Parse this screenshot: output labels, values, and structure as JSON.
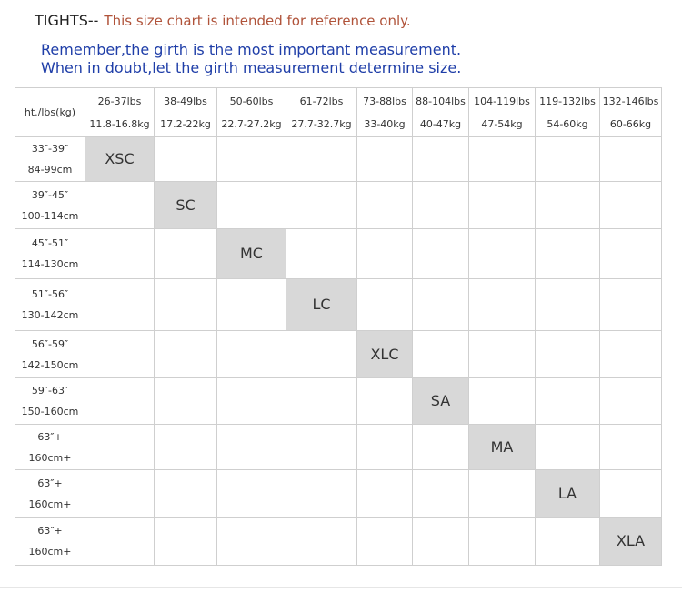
{
  "header": {
    "label": "TIGHTS--",
    "note": "This size chart is intended for reference only.",
    "line1": "Remember,the girth is the most important measurement.",
    "line2": "When in doubt,let the girth measurement determine size."
  },
  "table": {
    "corner_label": "ht./lbs(kg)",
    "weights": [
      {
        "lbs": "26-37lbs",
        "kg": "11.8-16.8kg"
      },
      {
        "lbs": "38-49lbs",
        "kg": "17.2-22kg"
      },
      {
        "lbs": "50-60lbs",
        "kg": "22.7-27.2kg"
      },
      {
        "lbs": "61-72lbs",
        "kg": "27.7-32.7kg"
      },
      {
        "lbs": "73-88lbs",
        "kg": "33-40kg"
      },
      {
        "lbs": "88-104lbs",
        "kg": "40-47kg"
      },
      {
        "lbs": "104-119lbs",
        "kg": "47-54kg"
      },
      {
        "lbs": "119-132lbs",
        "kg": "54-60kg"
      },
      {
        "lbs": "132-146lbs",
        "kg": "60-66kg"
      }
    ],
    "rows": [
      {
        "in": "33″-39″",
        "cm": "84-99cm",
        "size": "XSC"
      },
      {
        "in": "39″-45″",
        "cm": "100-114cm",
        "size": "SC"
      },
      {
        "in": "45″-51″",
        "cm": "114-130cm",
        "size": "MC"
      },
      {
        "in": "51″-56″",
        "cm": "130-142cm",
        "size": "LC"
      },
      {
        "in": "56″-59″",
        "cm": "142-150cm",
        "size": "XLC"
      },
      {
        "in": "59″-63″",
        "cm": "150-160cm",
        "size": "SA"
      },
      {
        "in": "63″+",
        "cm": "160cm+",
        "size": "MA"
      },
      {
        "in": "63″+",
        "cm": "160cm+",
        "size": "LA"
      },
      {
        "in": "63″+",
        "cm": "160cm+",
        "size": "XLA"
      }
    ]
  },
  "colors": {
    "note_text": "#b0533a",
    "instruction_text": "#1f3ea8",
    "highlight_cell": "#d8d8d8",
    "grid_line": "#cfcfcf"
  }
}
